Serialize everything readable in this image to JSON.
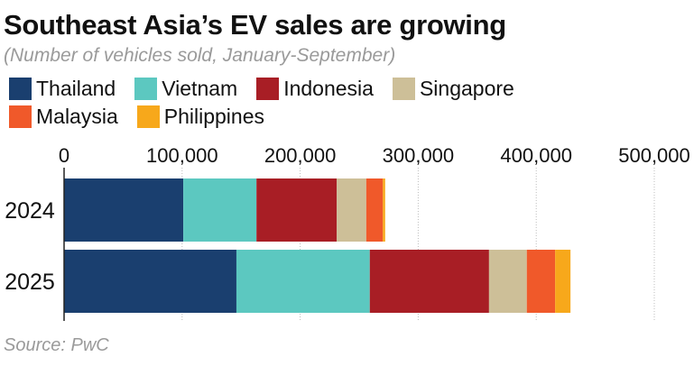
{
  "chart_data": {
    "type": "bar",
    "orientation": "horizontal",
    "stacked": true,
    "title": "Southeast Asia’s EV sales are growing",
    "subtitle": "(Number of vehicles sold, January-September)",
    "source": "Source: PwC",
    "categories": [
      "2024",
      "2025"
    ],
    "xlim": [
      0,
      500000
    ],
    "xticks": [
      0,
      100000,
      200000,
      300000,
      400000,
      500000
    ],
    "xtick_labels": [
      "0",
      "100,000",
      "200,000",
      "300,000",
      "400,000",
      "500,000"
    ],
    "x_axis_position": "top",
    "grid": "vertical dotted",
    "legend_position": "top",
    "series": [
      {
        "name": "Thailand",
        "color": "#1a3f6f",
        "values": [
          101000,
          146000
        ]
      },
      {
        "name": "Vietnam",
        "color": "#5cc8c0",
        "values": [
          62000,
          113000
        ]
      },
      {
        "name": "Indonesia",
        "color": "#a81e25",
        "values": [
          68000,
          101000
        ]
      },
      {
        "name": "Singapore",
        "color": "#cdbf98",
        "values": [
          25000,
          32000
        ]
      },
      {
        "name": "Malaysia",
        "color": "#f0592a",
        "values": [
          14000,
          24000
        ]
      },
      {
        "name": "Philippines",
        "color": "#f7a81b",
        "values": [
          2000,
          13000
        ]
      }
    ]
  }
}
